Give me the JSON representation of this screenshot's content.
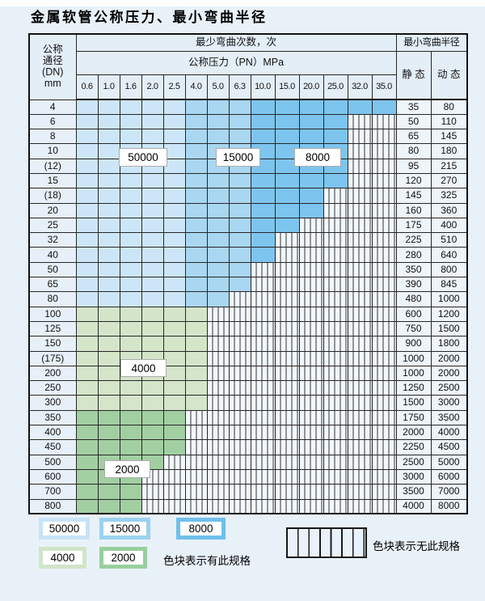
{
  "page": {
    "title": "金属软管公称压力、最小弯曲半径"
  },
  "table": {
    "dn_header_lines": [
      "公称",
      "通径",
      "(DN)",
      "mm"
    ],
    "cycles_header": "最少弯曲次数，次",
    "radius_header": "最小弯曲半径",
    "pressure_header": "公称压力（PN）MPa",
    "static_header": "静 态",
    "dynamic_header": "动 态",
    "pressure_columns": [
      "0.6",
      "1.0",
      "1.6",
      "2.0",
      "2.5",
      "4.0",
      "5.0",
      "6.3",
      "10.0",
      "15.0",
      "20.0",
      "25.0",
      "32.0",
      "35.0"
    ],
    "rows": [
      {
        "dn": "4",
        "spec_cols": 14,
        "group": "blue",
        "static": "35",
        "dynamic": "80"
      },
      {
        "dn": "6",
        "spec_cols": 12,
        "group": "blue",
        "static": "50",
        "dynamic": "110"
      },
      {
        "dn": "8",
        "spec_cols": 12,
        "group": "blue",
        "static": "65",
        "dynamic": "145"
      },
      {
        "dn": "10",
        "spec_cols": 12,
        "group": "blue",
        "static": "80",
        "dynamic": "180"
      },
      {
        "dn": "(12)",
        "spec_cols": 12,
        "group": "blue",
        "static": "95",
        "dynamic": "215"
      },
      {
        "dn": "15",
        "spec_cols": 12,
        "group": "blue",
        "static": "120",
        "dynamic": "270"
      },
      {
        "dn": "(18)",
        "spec_cols": 11,
        "group": "blue",
        "static": "145",
        "dynamic": "325"
      },
      {
        "dn": "20",
        "spec_cols": 11,
        "group": "blue",
        "static": "160",
        "dynamic": "360"
      },
      {
        "dn": "25",
        "spec_cols": 10,
        "group": "blue",
        "static": "175",
        "dynamic": "400"
      },
      {
        "dn": "32",
        "spec_cols": 9,
        "group": "blue",
        "static": "225",
        "dynamic": "510"
      },
      {
        "dn": "40",
        "spec_cols": 9,
        "group": "blue",
        "static": "280",
        "dynamic": "640"
      },
      {
        "dn": "50",
        "spec_cols": 8,
        "group": "blue",
        "static": "350",
        "dynamic": "800"
      },
      {
        "dn": "65",
        "spec_cols": 8,
        "group": "blue",
        "static": "390",
        "dynamic": "845"
      },
      {
        "dn": "80",
        "spec_cols": 7,
        "group": "blue",
        "static": "480",
        "dynamic": "1000"
      },
      {
        "dn": "100",
        "spec_cols": 6,
        "group": "green4000",
        "static": "600",
        "dynamic": "1200"
      },
      {
        "dn": "125",
        "spec_cols": 6,
        "group": "green4000",
        "static": "750",
        "dynamic": "1500"
      },
      {
        "dn": "150",
        "spec_cols": 6,
        "group": "green4000",
        "static": "900",
        "dynamic": "1800"
      },
      {
        "dn": "(175)",
        "spec_cols": 6,
        "group": "green4000",
        "static": "1000",
        "dynamic": "2000"
      },
      {
        "dn": "200",
        "spec_cols": 6,
        "group": "green4000",
        "static": "1000",
        "dynamic": "2000"
      },
      {
        "dn": "250",
        "spec_cols": 6,
        "group": "green4000",
        "static": "1250",
        "dynamic": "2500"
      },
      {
        "dn": "300",
        "spec_cols": 6,
        "group": "green4000",
        "static": "1500",
        "dynamic": "3000"
      },
      {
        "dn": "350",
        "spec_cols": 5,
        "group": "green2000",
        "static": "1750",
        "dynamic": "3500"
      },
      {
        "dn": "400",
        "spec_cols": 5,
        "group": "green2000",
        "static": "2000",
        "dynamic": "4000"
      },
      {
        "dn": "450",
        "spec_cols": 5,
        "group": "green2000",
        "static": "2250",
        "dynamic": "4500"
      },
      {
        "dn": "500",
        "spec_cols": 4,
        "group": "green2000",
        "static": "2500",
        "dynamic": "5000"
      },
      {
        "dn": "600",
        "spec_cols": 3,
        "group": "green2000",
        "static": "3000",
        "dynamic": "6000"
      },
      {
        "dn": "700",
        "spec_cols": 3,
        "group": "green2000",
        "static": "3500",
        "dynamic": "7000"
      },
      {
        "dn": "800",
        "spec_cols": 3,
        "group": "green2000",
        "static": "4000",
        "dynamic": "8000"
      }
    ]
  },
  "cycle_zones": {
    "blue_by_column": [
      {
        "cycles": "50000",
        "first_col": "0.6",
        "last_col": "2.5"
      },
      {
        "cycles": "15000",
        "first_col": "4.0",
        "last_col": "6.3"
      },
      {
        "cycles": "8000",
        "first_col": "10.0",
        "last_col": "35.0"
      }
    ],
    "green_by_row": [
      {
        "cycles": "4000",
        "first_dn": "100",
        "last_dn": "300"
      },
      {
        "cycles": "2000",
        "first_dn": "350",
        "last_dn": "800"
      }
    ]
  },
  "overlay_labels": [
    "50000",
    "15000",
    "8000",
    "4000",
    "2000"
  ],
  "legend": {
    "swatches": [
      {
        "label": "50000",
        "color": "#c7e3f6"
      },
      {
        "label": "15000",
        "color": "#9bd2f0"
      },
      {
        "label": "8000",
        "color": "#6fc0ec"
      },
      {
        "label": "4000",
        "color": "#d0e5c8"
      },
      {
        "label": "2000",
        "color": "#98cf9e"
      }
    ],
    "has_spec_text": "色块表示有此规格",
    "no_spec_text": "色块表示无此规格"
  },
  "colors": {
    "page_bg": "#e9f1f8",
    "blue_light": "#cde6f7",
    "blue_medium": "#a9d6f1",
    "blue_dark": "#7dc5ee",
    "green_light": "#d4e5ca",
    "green_dark": "#a2cfa2",
    "header_bg": "#e4eef7",
    "hatch_bg": "#f2f7fc",
    "grid_line": "#262626"
  }
}
